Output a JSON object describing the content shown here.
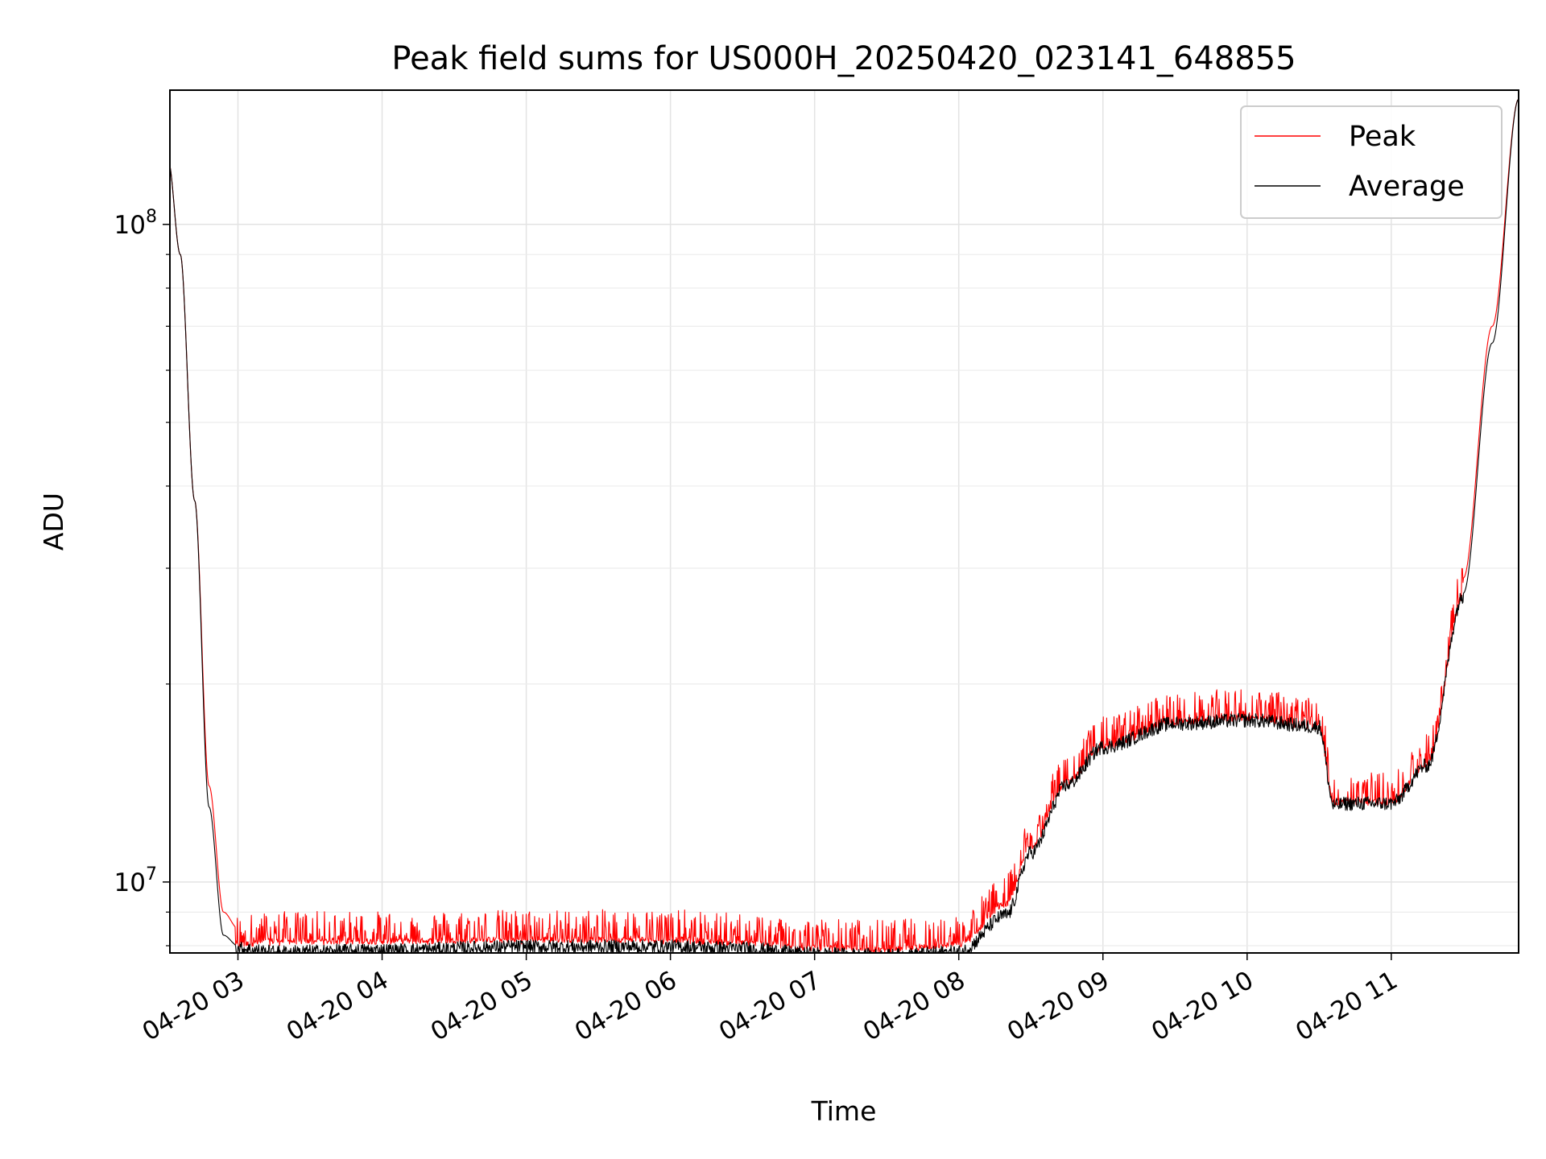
{
  "chart_data": {
    "type": "line",
    "title": "Peak field sums for US000H_20250420_023141_648855",
    "xlabel": "Time",
    "ylabel": "ADU",
    "yscale": "log",
    "xlim": [
      "2025-04-20 02:31:41",
      "2025-04-20 11:53:00"
    ],
    "ylim": [
      7800000,
      160000000
    ],
    "grid": true,
    "legend_position": "top-right",
    "x_tick_labels": [
      "04-20 03",
      "04-20 04",
      "04-20 05",
      "04-20 06",
      "04-20 07",
      "04-20 08",
      "04-20 09",
      "04-20 10",
      "04-20 11"
    ],
    "y_tick_labels": [
      {
        "base": "10",
        "exp": "8",
        "value": 100000000
      },
      {
        "base": "10",
        "exp": "7",
        "value": 10000000
      }
    ],
    "x": [
      "2025-04-20 02:31",
      "2025-04-20 02:36",
      "2025-04-20 02:42",
      "2025-04-20 02:48",
      "2025-04-20 02:54",
      "2025-04-20 03:00",
      "2025-04-20 03:15",
      "2025-04-20 04:00",
      "2025-04-20 05:00",
      "2025-04-20 06:00",
      "2025-04-20 06:30",
      "2025-04-20 07:00",
      "2025-04-20 07:30",
      "2025-04-20 08:00",
      "2025-04-20 08:20",
      "2025-04-20 08:30",
      "2025-04-20 08:45",
      "2025-04-20 09:00",
      "2025-04-20 09:30",
      "2025-04-20 10:00",
      "2025-04-20 10:30",
      "2025-04-20 10:36",
      "2025-04-20 10:42",
      "2025-04-20 11:00",
      "2025-04-20 11:15",
      "2025-04-20 11:30",
      "2025-04-20 11:42",
      "2025-04-20 11:53"
    ],
    "series": [
      {
        "name": "Peak",
        "color": "#ff0000",
        "values": [
          125000000,
          90000000,
          38000000,
          14000000,
          9000000,
          8500000,
          8600000,
          8600000,
          8650000,
          8650000,
          8550000,
          8400000,
          8350000,
          8500000,
          9800000,
          12000000,
          15000000,
          17000000,
          18500000,
          18800000,
          18200000,
          14000000,
          14000000,
          14000000,
          16000000,
          29000000,
          70000000,
          155000000
        ]
      },
      {
        "name": "Average",
        "color": "#000000",
        "values": [
          125000000,
          90000000,
          38000000,
          13000000,
          8300000,
          8000000,
          7900000,
          7950000,
          8050000,
          8050000,
          8000000,
          7850000,
          7800000,
          7900000,
          9000000,
          11200000,
          14200000,
          16200000,
          17600000,
          17800000,
          17400000,
          13200000,
          13300000,
          13300000,
          15200000,
          27500000,
          66000000,
          155000000
        ]
      }
    ]
  }
}
